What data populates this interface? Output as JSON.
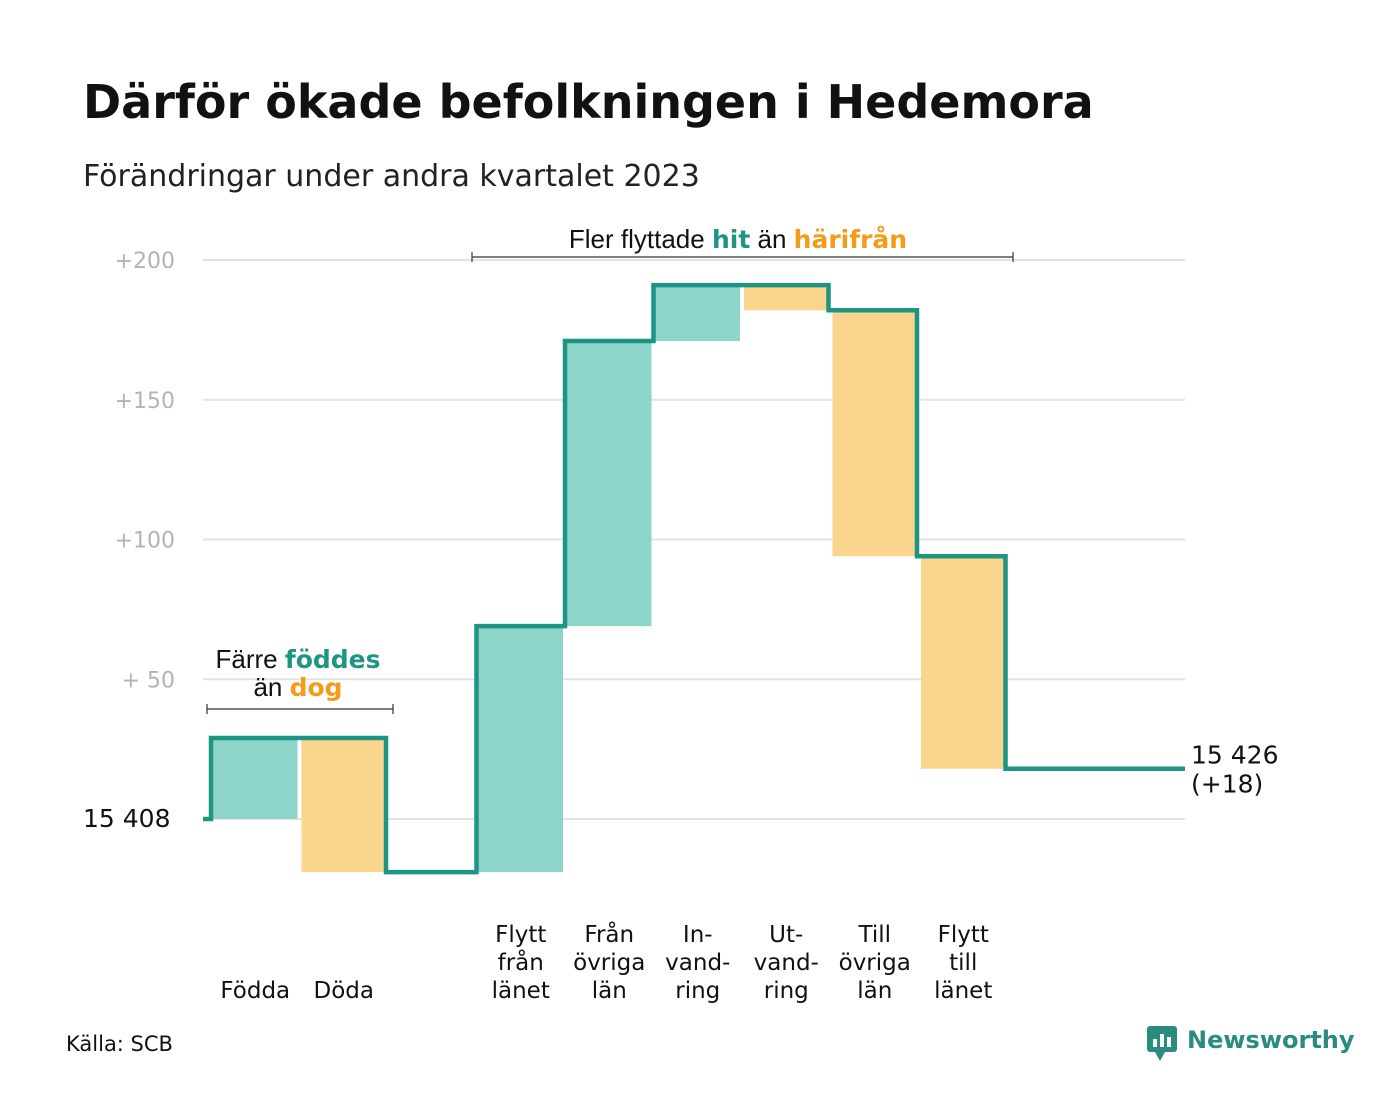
{
  "title": "Därför ökade befolkningen i Hedemora",
  "subtitle": "Förändringar under andra kvartalet 2023",
  "source": "Källa: SCB",
  "brand": "Newsworthy",
  "colors": {
    "increase_fill": "#8dd5cb",
    "decrease_fill": "#fad58d",
    "line": "#1e9483",
    "teal_text": "#1e9483",
    "orange_text": "#f39c1a",
    "grid": "#e3e3e3"
  },
  "annotations": {
    "birth": {
      "pre": "Färre ",
      "teal": "föddes",
      "line2_pre": "än ",
      "orange": "dog"
    },
    "migration": {
      "pre": "Fler flyttade ",
      "teal": "hit",
      "mid": " än ",
      "orange": "härifrån"
    }
  },
  "chart_data": {
    "type": "waterfall",
    "start": {
      "value": 15408,
      "label": "15  408"
    },
    "end": {
      "value": 15426,
      "label_line1": "15 426",
      "label_line2": "(+18)"
    },
    "y_ticks": [
      {
        "value": 50,
        "label": "+  50"
      },
      {
        "value": 100,
        "label": "+100"
      },
      {
        "value": 150,
        "label": "+150"
      },
      {
        "value": 200,
        "label": "+200"
      }
    ],
    "ylim": [
      -30,
      200
    ],
    "steps": [
      {
        "label": [
          "Födda"
        ],
        "change": 29
      },
      {
        "label": [
          "Döda"
        ],
        "change": -48
      },
      {
        "label": [],
        "change": 0,
        "spacer": true
      },
      {
        "label": [
          "Flytt",
          "från",
          "länet"
        ],
        "change": 88
      },
      {
        "label": [
          "Från",
          "övriga",
          "län"
        ],
        "change": 102
      },
      {
        "label": [
          "In-",
          "vand-",
          "ring"
        ],
        "change": 20
      },
      {
        "label": [
          "Ut-",
          "vand-",
          "ring"
        ],
        "change": -9
      },
      {
        "label": [
          "Till",
          "övriga",
          "län"
        ],
        "change": -88
      },
      {
        "label": [
          "Flytt",
          "till",
          "länet"
        ],
        "change": -76
      }
    ]
  }
}
